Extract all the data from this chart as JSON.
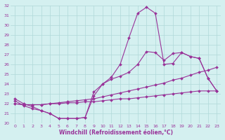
{
  "xlabel": "Windchill (Refroidissement éolien,°C)",
  "hours": [
    0,
    1,
    2,
    3,
    4,
    5,
    6,
    7,
    8,
    9,
    10,
    11,
    12,
    13,
    14,
    15,
    16,
    17,
    18,
    19,
    20,
    21,
    22,
    23
  ],
  "line1": [
    22.5,
    22.0,
    21.7,
    21.3,
    21.0,
    20.5,
    20.5,
    20.5,
    20.6,
    23.2,
    24.0,
    24.7,
    26.0,
    28.7,
    31.2,
    31.8,
    31.2,
    26.0,
    26.1,
    27.2,
    26.8,
    26.6,
    24.6,
    23.3
  ],
  "line2": [
    22.3,
    21.8,
    21.5,
    21.3,
    21.0,
    20.5,
    20.5,
    20.5,
    20.6,
    22.8,
    24.0,
    24.5,
    24.8,
    25.2,
    26.0,
    27.3,
    27.2,
    26.4,
    27.1,
    27.2,
    26.8,
    26.6,
    24.6,
    23.3
  ],
  "line3": [
    22.0,
    21.9,
    21.9,
    21.9,
    22.0,
    22.1,
    22.2,
    22.3,
    22.4,
    22.5,
    22.7,
    22.9,
    23.1,
    23.3,
    23.5,
    23.7,
    23.9,
    24.1,
    24.4,
    24.6,
    24.9,
    25.2,
    25.4,
    25.7
  ],
  "line4": [
    22.0,
    21.9,
    21.9,
    21.9,
    22.0,
    22.0,
    22.1,
    22.1,
    22.2,
    22.2,
    22.3,
    22.4,
    22.5,
    22.5,
    22.6,
    22.7,
    22.8,
    22.9,
    23.0,
    23.1,
    23.2,
    23.3,
    23.3,
    23.3
  ],
  "line_color": "#993399",
  "bg_color": "#d4f0f0",
  "grid_color": "#b0d8d8",
  "ylim": [
    20,
    32
  ],
  "xlim": [
    -0.5,
    23.5
  ],
  "yticks": [
    20,
    21,
    22,
    23,
    24,
    25,
    26,
    27,
    28,
    29,
    30,
    31,
    32
  ],
  "xticks": [
    0,
    1,
    2,
    3,
    4,
    5,
    6,
    7,
    8,
    9,
    10,
    11,
    12,
    13,
    14,
    15,
    16,
    17,
    18,
    19,
    20,
    21,
    22,
    23
  ]
}
